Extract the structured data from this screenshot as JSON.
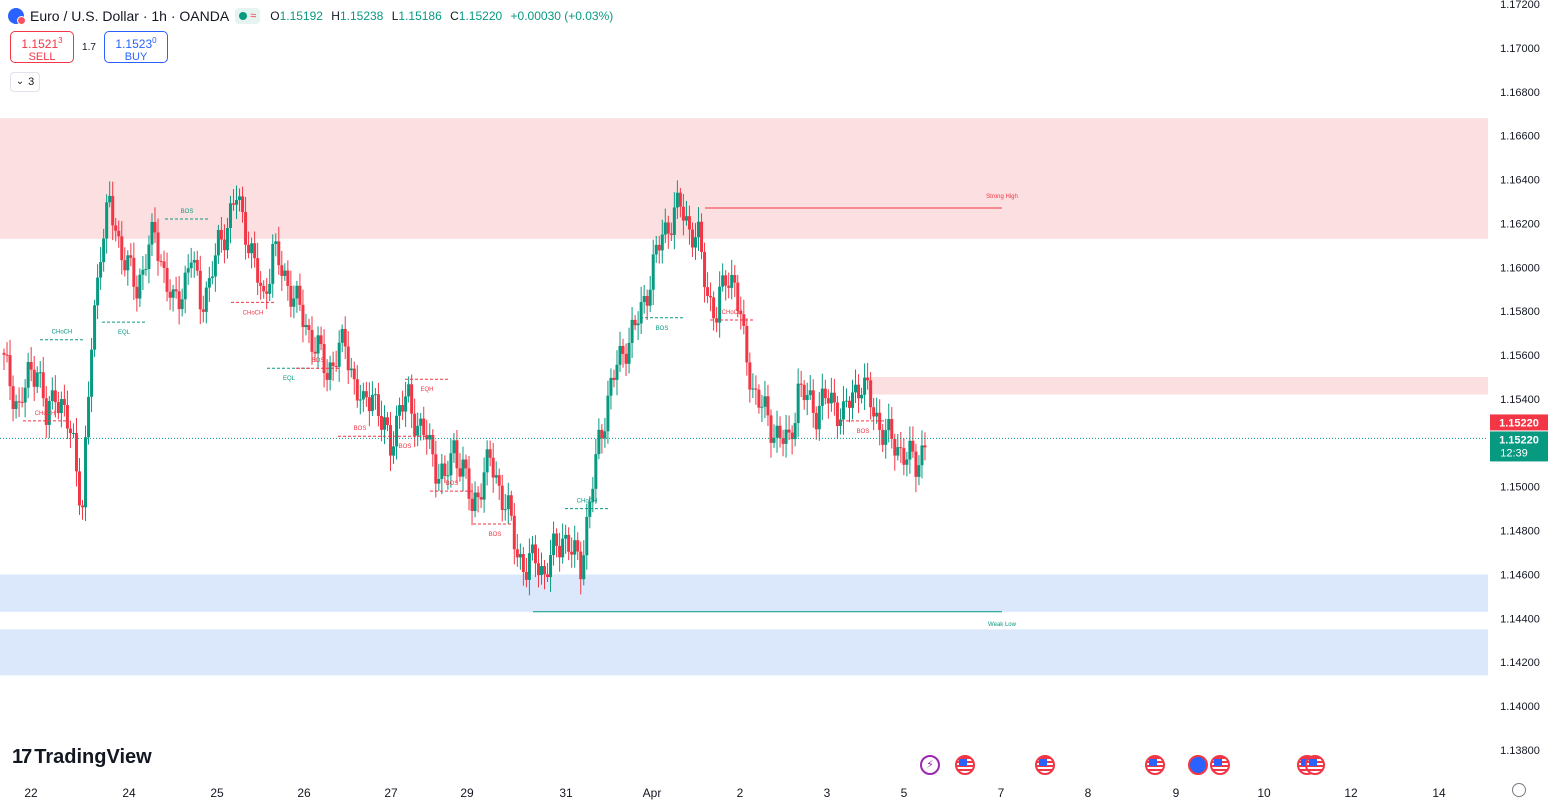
{
  "header": {
    "title": "Euro / U.S. Dollar · 1h · OANDA",
    "open_label": "O",
    "open": "1.15192",
    "high_label": "H",
    "high": "1.15238",
    "low_label": "L",
    "low": "1.15186",
    "close_label": "C",
    "close": "1.15220",
    "change": "+0.00030 (+0.03%)"
  },
  "trade": {
    "sell_price_main": "1.1521",
    "sell_price_sup": "3",
    "sell_label": "SELL",
    "spread": "1.7",
    "buy_price_main": "1.1523",
    "buy_price_sup": "0",
    "buy_label": "BUY"
  },
  "indicators_toggle": {
    "count": "3",
    "chevron": "⌄"
  },
  "price_axis": {
    "ticks": [
      "1.17200",
      "1.17000",
      "1.16800",
      "1.16600",
      "1.16400",
      "1.16200",
      "1.16000",
      "1.15800",
      "1.15600",
      "1.15400",
      "1.15000",
      "1.14800",
      "1.14600",
      "1.14400",
      "1.14200",
      "1.14000",
      "1.13800"
    ],
    "last_price_label": "1.15220",
    "current_price_label": "1.15220",
    "countdown": "12:39"
  },
  "time_axis": {
    "labels": [
      "22",
      "24",
      "25",
      "26",
      "27",
      "29",
      "31",
      "Apr",
      "2",
      "3",
      "5",
      "7",
      "8",
      "9",
      "10",
      "12",
      "14"
    ]
  },
  "brand": {
    "name": "TradingView",
    "mark": "17"
  },
  "events": [
    "flash",
    "us",
    "us",
    "us",
    "eu",
    "us",
    "us",
    "us"
  ],
  "colors": {
    "up": "#089981",
    "down": "#f23645",
    "supply_zone": "#fbd4d6",
    "demand_zone": "#cfe0fb",
    "accent": "#2962ff"
  },
  "chart_data": {
    "type": "candlestick",
    "symbol": "Euro / U.S. Dollar",
    "timeframe": "1h",
    "source": "OANDA",
    "ylim": [
      1.1375,
      1.172
    ],
    "y_ticks": [
      1.138,
      1.14,
      1.142,
      1.144,
      1.146,
      1.148,
      1.15,
      1.154,
      1.156,
      1.158,
      1.16,
      1.162,
      1.164,
      1.166,
      1.168,
      1.17,
      1.172
    ],
    "x_labels": [
      "22",
      "24",
      "25",
      "26",
      "27",
      "29",
      "31",
      "Apr",
      "2",
      "3",
      "5",
      "7",
      "8",
      "9",
      "10",
      "12",
      "14"
    ],
    "last_price": 1.1522,
    "close_path": [
      1.1561,
      1.1548,
      1.1535,
      1.155,
      1.1556,
      1.153,
      1.1545,
      1.1532,
      1.152,
      1.149,
      1.1565,
      1.161,
      1.1628,
      1.1612,
      1.16,
      1.159,
      1.1605,
      1.1615,
      1.1598,
      1.1582,
      1.159,
      1.1605,
      1.1585,
      1.1592,
      1.161,
      1.162,
      1.1632,
      1.1618,
      1.16,
      1.1585,
      1.1608,
      1.1598,
      1.159,
      1.158,
      1.157,
      1.1562,
      1.1552,
      1.156,
      1.1565,
      1.1548,
      1.1535,
      1.1545,
      1.1528,
      1.152,
      1.1535,
      1.154,
      1.1528,
      1.1522,
      1.151,
      1.1502,
      1.1518,
      1.1508,
      1.149,
      1.1502,
      1.1512,
      1.15,
      1.1488,
      1.147,
      1.1462,
      1.1468,
      1.146,
      1.147,
      1.1478,
      1.147,
      1.1465,
      1.1492,
      1.152,
      1.154,
      1.1555,
      1.1565,
      1.1572,
      1.1585,
      1.16,
      1.1615,
      1.1622,
      1.1628,
      1.1618,
      1.1612,
      1.1588,
      1.1578,
      1.1596,
      1.1594,
      1.1565,
      1.1545,
      1.1536,
      1.1528,
      1.1522,
      1.152,
      1.1544,
      1.154,
      1.1535,
      1.154,
      1.1538,
      1.1532,
      1.1542,
      1.1548,
      1.1538,
      1.1528,
      1.1522,
      1.1518,
      1.1514,
      1.151,
      1.152
    ],
    "zones": [
      {
        "type": "supply",
        "from": 1.1613,
        "to": 1.1668
      },
      {
        "type": "supply",
        "from": 1.1542,
        "to": 1.155
      },
      {
        "type": "demand",
        "from": 1.1443,
        "to": 1.146
      },
      {
        "type": "demand",
        "from": 1.1414,
        "to": 1.1435
      }
    ],
    "levels": [
      {
        "label": "Strong High",
        "price": 1.1627
      },
      {
        "label": "Weak Low",
        "price": 1.1443
      }
    ],
    "annotations": [
      {
        "text": "CHoCH",
        "price": 1.1567
      },
      {
        "text": "EQL",
        "price": 1.1575
      },
      {
        "text": "BOS",
        "price": 1.1622
      },
      {
        "text": "CHoCH",
        "price": 1.1584
      },
      {
        "text": "CHoCH",
        "price": 1.153
      },
      {
        "text": "EQL",
        "price": 1.1554
      },
      {
        "text": "BOS",
        "price": 1.1554
      },
      {
        "text": "EQH",
        "price": 1.1549
      },
      {
        "text": "BOS",
        "price": 1.1523
      },
      {
        "text": "BOS",
        "price": 1.1523
      },
      {
        "text": "BOS",
        "price": 1.1498
      },
      {
        "text": "BOS",
        "price": 1.1483
      },
      {
        "text": "CHoCH",
        "price": 1.149
      },
      {
        "text": "BOS",
        "price": 1.1577
      },
      {
        "text": "CHoCH",
        "price": 1.1576
      },
      {
        "text": "BOS",
        "price": 1.153
      }
    ]
  }
}
